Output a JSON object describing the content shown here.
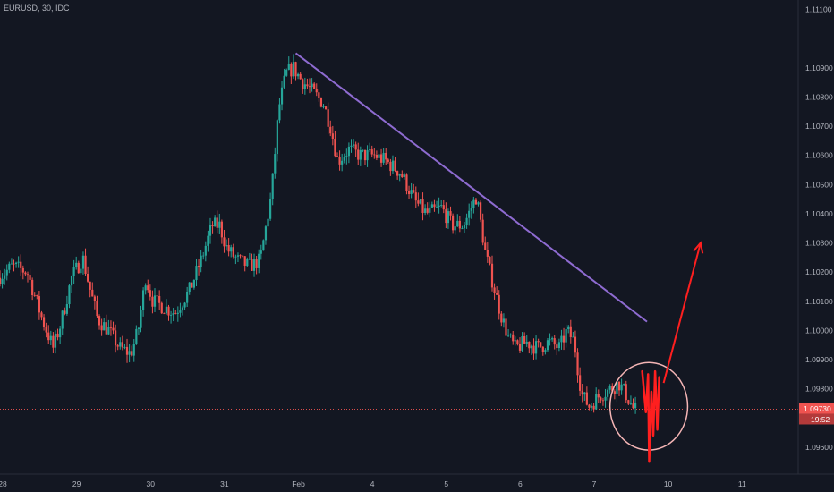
{
  "header": {
    "symbol_label": "EURUSD, 30, IDC"
  },
  "colors": {
    "background": "#131722",
    "up": "#26a69a",
    "down": "#ef5350",
    "trendline": "#8e6bd1",
    "annotation": "#ff1f1f",
    "circle": "#f4b5b5",
    "price_line": "#ef5350",
    "axis_text": "#b2b5be"
  },
  "chart_data": {
    "type": "candlestick",
    "x_tick_labels": [
      "28",
      "29",
      "30",
      "31",
      "Feb",
      "4",
      "5",
      "6",
      "7",
      "10",
      "11"
    ],
    "y_tick_labels": [
      "1.11100",
      "1.10900",
      "1.10800",
      "1.10700",
      "1.10600",
      "1.10500",
      "1.10400",
      "1.10300",
      "1.10200",
      "1.10100",
      "1.10000",
      "1.09900",
      "1.09800",
      "1.09600"
    ],
    "y_ticks": [
      1.111,
      1.109,
      1.108,
      1.107,
      1.106,
      1.105,
      1.104,
      1.103,
      1.102,
      1.101,
      1.1,
      1.099,
      1.098,
      1.096
    ],
    "x_tick_positions": [
      0,
      2,
      4,
      6,
      8,
      10,
      12,
      14,
      16,
      18,
      20
    ],
    "ylim": [
      1.0952,
      1.1112
    ],
    "xlim": [
      0,
      21.3
    ],
    "current_price": 1.0973,
    "current_price_label": "1.09730",
    "countdown_label": "19:52",
    "price_path": [
      [
        0.0,
        1.1018
      ],
      [
        0.4,
        1.1022
      ],
      [
        0.8,
        1.102
      ],
      [
        1.0,
        1.1012
      ],
      [
        1.2,
        1.1004
      ],
      [
        1.5,
        1.0994
      ],
      [
        1.7,
        1.1002
      ],
      [
        2.0,
        1.1018
      ],
      [
        2.3,
        1.1025
      ],
      [
        2.5,
        1.1014
      ],
      [
        2.7,
        1.1004
      ],
      [
        3.0,
        1.1
      ],
      [
        3.3,
        1.0994
      ],
      [
        3.6,
        1.0992
      ],
      [
        3.8,
        1.1
      ],
      [
        4.0,
        1.1018
      ],
      [
        4.2,
        1.101
      ],
      [
        4.5,
        1.1008
      ],
      [
        4.8,
        1.1006
      ],
      [
        5.2,
        1.1014
      ],
      [
        5.5,
        1.1024
      ],
      [
        5.8,
        1.1036
      ],
      [
        6.0,
        1.1036
      ],
      [
        6.2,
        1.1028
      ],
      [
        6.5,
        1.1024
      ],
      [
        6.8,
        1.1022
      ],
      [
        7.1,
        1.1024
      ],
      [
        7.4,
        1.1046
      ],
      [
        7.6,
        1.1076
      ],
      [
        7.8,
        1.1088
      ],
      [
        8.0,
        1.109
      ],
      [
        8.2,
        1.1086
      ],
      [
        8.5,
        1.1082
      ],
      [
        8.8,
        1.1078
      ],
      [
        9.0,
        1.107
      ],
      [
        9.2,
        1.1058
      ],
      [
        9.5,
        1.1062
      ],
      [
        9.8,
        1.106
      ],
      [
        10.2,
        1.106
      ],
      [
        10.5,
        1.1058
      ],
      [
        10.9,
        1.1054
      ],
      [
        11.3,
        1.1044
      ],
      [
        11.6,
        1.104
      ],
      [
        12.0,
        1.1042
      ],
      [
        12.3,
        1.1036
      ],
      [
        12.6,
        1.1036
      ],
      [
        12.95,
        1.1046
      ],
      [
        13.2,
        1.1026
      ],
      [
        13.4,
        1.1016
      ],
      [
        13.6,
        1.1006
      ],
      [
        13.8,
        1.0998
      ],
      [
        14.0,
        1.0994
      ],
      [
        14.3,
        1.0996
      ],
      [
        14.6,
        1.0994
      ],
      [
        14.9,
        1.0996
      ],
      [
        15.2,
        1.0994
      ],
      [
        15.4,
        1.1
      ],
      [
        15.6,
        1.0996
      ],
      [
        15.7,
        1.0986
      ],
      [
        15.8,
        1.0978
      ],
      [
        16.0,
        1.0974
      ],
      [
        16.3,
        1.0978
      ],
      [
        16.6,
        1.098
      ],
      [
        16.8,
        1.0982
      ],
      [
        17.0,
        1.0978
      ],
      [
        17.2,
        1.0973
      ]
    ],
    "trendline": {
      "x": [
        8.0,
        17.5
      ],
      "y": [
        1.1095,
        1.1003
      ]
    },
    "drawing_zigzag": [
      [
        17.37,
        1.0986
      ],
      [
        17.47,
        1.0972
      ],
      [
        17.53,
        1.0985
      ],
      [
        17.56,
        1.0955
      ],
      [
        17.62,
        1.0979
      ],
      [
        17.67,
        1.0964
      ],
      [
        17.72,
        1.0986
      ],
      [
        17.78,
        1.0966
      ],
      [
        17.83,
        1.0984
      ]
    ],
    "drawing_arrow": {
      "from": [
        17.95,
        1.0982
      ],
      "to": [
        18.95,
        1.103
      ]
    },
    "drawing_circle": {
      "center": [
        17.55,
        1.0974
      ],
      "radius_x": 1.05,
      "radius_y": 0.0015
    }
  }
}
